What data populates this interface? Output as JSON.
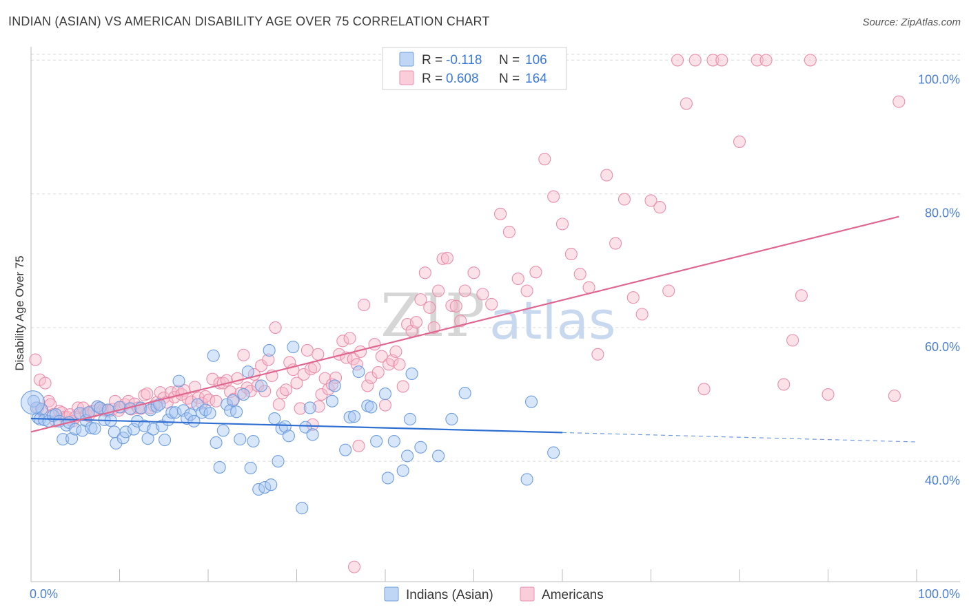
{
  "title": "INDIAN (ASIAN) VS AMERICAN DISABILITY AGE OVER 75 CORRELATION CHART",
  "source": "Source: ZipAtlas.com",
  "watermark": {
    "zip": "ZIP",
    "atlas": "atlas"
  },
  "colors": {
    "indian_fill": "#a9c8f2",
    "indian_stroke": "#6d9de0",
    "indian_line": "#2f6fd1",
    "american_fill": "#f7bccd",
    "american_stroke": "#ea8eab",
    "american_line": "#e06690",
    "grid": "#d9d9d9",
    "tick_label": "#4a7fd0"
  },
  "legend": {
    "rows": [
      {
        "r_label": "R = ",
        "r_value": "-0.118",
        "n_label": "N = ",
        "n_value": "106"
      },
      {
        "r_label": "R = ",
        "r_value": "0.608",
        "n_label": "N = ",
        "n_value": "164"
      }
    ]
  },
  "bottom_legend": [
    "Indians (Asian)",
    "Americans"
  ],
  "chart_data": {
    "type": "scatter",
    "xlabel": "",
    "ylabel": "Disability Age Over 75",
    "xlim": [
      0,
      100
    ],
    "ylim": [
      22,
      102
    ],
    "x_tick_labels": [
      "0.0%",
      "100.0%"
    ],
    "y_ticks": [
      40,
      60,
      80,
      100
    ],
    "y_tick_labels": [
      "40.0%",
      "60.0%",
      "80.0%",
      "100.0%"
    ],
    "grid": true,
    "legend_position": "top-center",
    "series": [
      {
        "name": "Indians (Asian)",
        "r": -0.118,
        "n": 106,
        "trend": {
          "x0": 0,
          "y0": 46.4,
          "x1": 60,
          "y1": 44.3,
          "dashed_to_x": 100,
          "dashed_y1": 42.9
        },
        "points": [
          [
            0.6,
            48.0
          ],
          [
            0.8,
            46.5
          ],
          [
            1.0,
            46.3
          ],
          [
            1.5,
            46.2
          ],
          [
            2.0,
            46.0
          ],
          [
            2.5,
            46.8
          ],
          [
            2.8,
            47.0
          ],
          [
            3.2,
            46.0
          ],
          [
            3.6,
            43.3
          ],
          [
            4.0,
            45.4
          ],
          [
            4.3,
            45.8
          ],
          [
            4.6,
            43.4
          ],
          [
            5.0,
            44.8
          ],
          [
            5.5,
            47.2
          ],
          [
            5.8,
            44.6
          ],
          [
            6.2,
            46.1
          ],
          [
            6.5,
            47.3
          ],
          [
            6.8,
            45.0
          ],
          [
            7.2,
            44.9
          ],
          [
            7.5,
            48.2
          ],
          [
            7.8,
            48.0
          ],
          [
            8.3,
            46.2
          ],
          [
            8.7,
            47.7
          ],
          [
            9.0,
            46.1
          ],
          [
            9.4,
            44.4
          ],
          [
            9.6,
            42.7
          ],
          [
            10.0,
            48.1
          ],
          [
            10.4,
            43.5
          ],
          [
            10.7,
            44.4
          ],
          [
            11.2,
            47.9
          ],
          [
            11.6,
            44.8
          ],
          [
            12.0,
            46.0
          ],
          [
            12.4,
            48.0
          ],
          [
            12.8,
            45.3
          ],
          [
            13.2,
            43.4
          ],
          [
            13.5,
            47.7
          ],
          [
            13.8,
            44.8
          ],
          [
            14.2,
            48.2
          ],
          [
            14.5,
            48.5
          ],
          [
            14.8,
            45.3
          ],
          [
            15.1,
            43.2
          ],
          [
            15.5,
            46.2
          ],
          [
            15.9,
            47.3
          ],
          [
            16.3,
            47.3
          ],
          [
            16.7,
            52.0
          ],
          [
            17.2,
            47.6
          ],
          [
            17.6,
            46.4
          ],
          [
            18.0,
            47.0
          ],
          [
            18.4,
            46.0
          ],
          [
            18.8,
            48.5
          ],
          [
            19.3,
            47.3
          ],
          [
            19.7,
            47.7
          ],
          [
            20.2,
            47.2
          ],
          [
            20.6,
            55.8
          ],
          [
            20.9,
            42.8
          ],
          [
            21.3,
            39.1
          ],
          [
            21.7,
            44.6
          ],
          [
            22.1,
            48.5
          ],
          [
            22.5,
            47.6
          ],
          [
            22.8,
            49.1
          ],
          [
            23.2,
            47.4
          ],
          [
            23.6,
            43.3
          ],
          [
            24.0,
            50.0
          ],
          [
            24.5,
            53.4
          ],
          [
            24.8,
            39.0
          ],
          [
            25.1,
            43.0
          ],
          [
            25.7,
            35.8
          ],
          [
            26.0,
            51.3
          ],
          [
            26.4,
            36.1
          ],
          [
            26.9,
            56.6
          ],
          [
            27.1,
            36.5
          ],
          [
            27.5,
            46.4
          ],
          [
            27.9,
            40.0
          ],
          [
            28.3,
            44.9
          ],
          [
            28.7,
            45.2
          ],
          [
            29.1,
            43.8
          ],
          [
            29.6,
            57.1
          ],
          [
            30.6,
            33.0
          ],
          [
            31.0,
            45.1
          ],
          [
            31.5,
            48.0
          ],
          [
            31.8,
            44.0
          ],
          [
            34.0,
            49.0
          ],
          [
            34.3,
            51.3
          ],
          [
            35.5,
            41.7
          ],
          [
            36.0,
            46.6
          ],
          [
            36.5,
            46.7
          ],
          [
            37.0,
            53.4
          ],
          [
            38.0,
            48.3
          ],
          [
            38.4,
            48.1
          ],
          [
            39.0,
            43.0
          ],
          [
            40.0,
            50.1
          ],
          [
            40.3,
            37.5
          ],
          [
            41.0,
            43.0
          ],
          [
            42.0,
            38.6
          ],
          [
            42.5,
            40.8
          ],
          [
            42.8,
            46.3
          ],
          [
            43.0,
            53.1
          ],
          [
            44.0,
            42.1
          ],
          [
            46.0,
            40.8
          ],
          [
            47.5,
            46.3
          ],
          [
            49.0,
            50.2
          ],
          [
            56.0,
            37.3
          ],
          [
            56.5,
            48.9
          ],
          [
            59.0,
            41.3
          ],
          [
            0.3,
            49.0
          ],
          [
            1.2,
            47.8
          ]
        ]
      },
      {
        "name": "Americans",
        "r": 0.608,
        "n": 164,
        "trend": {
          "x0": 0,
          "y0": 44.4,
          "x1": 98,
          "y1": 76.6
        },
        "points": [
          [
            0.5,
            55.2
          ],
          [
            0.8,
            48.0
          ],
          [
            1.0,
            52.2
          ],
          [
            1.3,
            47.5
          ],
          [
            1.6,
            51.7
          ],
          [
            2.0,
            49.0
          ],
          [
            2.2,
            48.5
          ],
          [
            2.5,
            47.0
          ],
          [
            2.8,
            46.0
          ],
          [
            3.2,
            47.5
          ],
          [
            3.5,
            47.3
          ],
          [
            3.8,
            46.6
          ],
          [
            4.1,
            46.6
          ],
          [
            4.4,
            47.0
          ],
          [
            4.7,
            46.0
          ],
          [
            5.0,
            46.6
          ],
          [
            5.3,
            48.0
          ],
          [
            5.6,
            47.0
          ],
          [
            5.9,
            48.0
          ],
          [
            6.2,
            47.0
          ],
          [
            6.5,
            46.8
          ],
          [
            6.8,
            47.5
          ],
          [
            7.1,
            47.5
          ],
          [
            7.5,
            48.2
          ],
          [
            7.8,
            48.0
          ],
          [
            8.1,
            47.7
          ],
          [
            8.4,
            47.6
          ],
          [
            8.8,
            47.5
          ],
          [
            9.2,
            47.8
          ],
          [
            9.5,
            49.0
          ],
          [
            9.9,
            47.6
          ],
          [
            10.2,
            48.1
          ],
          [
            10.6,
            48.5
          ],
          [
            11.0,
            49.0
          ],
          [
            11.3,
            47.8
          ],
          [
            11.7,
            48.6
          ],
          [
            12.1,
            48.0
          ],
          [
            12.4,
            47.9
          ],
          [
            12.8,
            49.9
          ],
          [
            13.1,
            50.1
          ],
          [
            13.5,
            48.0
          ],
          [
            13.9,
            48.3
          ],
          [
            14.2,
            48.8
          ],
          [
            14.6,
            50.3
          ],
          [
            15.0,
            49.5
          ],
          [
            15.4,
            48.8
          ],
          [
            15.8,
            50.3
          ],
          [
            16.2,
            49.6
          ],
          [
            16.6,
            50.5
          ],
          [
            17.0,
            50.0
          ],
          [
            17.3,
            50.6
          ],
          [
            17.7,
            49.4
          ],
          [
            18.1,
            48.9
          ],
          [
            18.5,
            51.1
          ],
          [
            18.9,
            49.5
          ],
          [
            19.3,
            48.7
          ],
          [
            19.7,
            49.7
          ],
          [
            20.1,
            49.2
          ],
          [
            20.5,
            52.3
          ],
          [
            20.9,
            49.0
          ],
          [
            21.3,
            51.7
          ],
          [
            21.7,
            51.7
          ],
          [
            22.1,
            52.1
          ],
          [
            22.5,
            50.4
          ],
          [
            22.9,
            49.3
          ],
          [
            23.3,
            52.4
          ],
          [
            23.7,
            50.2
          ],
          [
            24.0,
            55.9
          ],
          [
            24.4,
            51.0
          ],
          [
            24.8,
            50.5
          ],
          [
            25.2,
            53.0
          ],
          [
            25.6,
            51.3
          ],
          [
            26.0,
            54.3
          ],
          [
            26.4,
            50.5
          ],
          [
            26.8,
            55.2
          ],
          [
            27.2,
            52.8
          ],
          [
            27.6,
            60.0
          ],
          [
            28.0,
            48.5
          ],
          [
            28.4,
            50.2
          ],
          [
            28.8,
            50.7
          ],
          [
            29.2,
            54.8
          ],
          [
            29.6,
            53.7
          ],
          [
            30.0,
            51.7
          ],
          [
            30.4,
            47.9
          ],
          [
            30.8,
            53.0
          ],
          [
            31.2,
            56.6
          ],
          [
            31.6,
            53.8
          ],
          [
            32.0,
            54.1
          ],
          [
            32.4,
            56.0
          ],
          [
            32.8,
            50.0
          ],
          [
            33.2,
            52.4
          ],
          [
            33.6,
            50.8
          ],
          [
            34.0,
            51.5
          ],
          [
            34.4,
            52.5
          ],
          [
            34.8,
            56.0
          ],
          [
            35.2,
            58.0
          ],
          [
            35.6,
            55.5
          ],
          [
            36.0,
            58.4
          ],
          [
            36.4,
            55.3
          ],
          [
            36.8,
            54.5
          ],
          [
            37.2,
            56.4
          ],
          [
            37.6,
            63.4
          ],
          [
            38.0,
            51.3
          ],
          [
            38.4,
            52.5
          ],
          [
            38.8,
            57.5
          ],
          [
            39.2,
            53.3
          ],
          [
            39.6,
            55.7
          ],
          [
            40.0,
            48.4
          ],
          [
            40.4,
            54.5
          ],
          [
            40.8,
            55.1
          ],
          [
            41.2,
            56.4
          ],
          [
            41.6,
            54.5
          ],
          [
            42.0,
            51.2
          ],
          [
            42.5,
            60.5
          ],
          [
            43.0,
            59.5
          ],
          [
            43.5,
            60.8
          ],
          [
            44.0,
            64.2
          ],
          [
            44.5,
            68.2
          ],
          [
            45.0,
            63.0
          ],
          [
            45.5,
            60.0
          ],
          [
            46.0,
            65.5
          ],
          [
            46.5,
            70.3
          ],
          [
            47.0,
            70.4
          ],
          [
            47.5,
            63.3
          ],
          [
            48.0,
            63.2
          ],
          [
            48.5,
            61.0
          ],
          [
            49.0,
            65.5
          ],
          [
            50.0,
            68.2
          ],
          [
            51.0,
            65.0
          ],
          [
            52.0,
            63.5
          ],
          [
            53.0,
            77.0
          ],
          [
            54.0,
            74.3
          ],
          [
            55.0,
            67.3
          ],
          [
            56.0,
            65.5
          ],
          [
            57.0,
            68.3
          ],
          [
            58.0,
            85.2
          ],
          [
            59.0,
            79.6
          ],
          [
            60.0,
            75.5
          ],
          [
            61.0,
            71.0
          ],
          [
            62.0,
            68.0
          ],
          [
            63.0,
            66.0
          ],
          [
            64.0,
            56.0
          ],
          [
            65.0,
            82.8
          ],
          [
            66.0,
            72.6
          ],
          [
            67.0,
            79.2
          ],
          [
            68.0,
            64.5
          ],
          [
            69.0,
            62.0
          ],
          [
            70.0,
            79.0
          ],
          [
            71.0,
            78.0
          ],
          [
            72.0,
            65.5
          ],
          [
            73.0,
            100.0
          ],
          [
            74.0,
            93.5
          ],
          [
            75.0,
            100.0
          ],
          [
            76.0,
            50.8
          ],
          [
            77.0,
            100.0
          ],
          [
            78.0,
            100.0
          ],
          [
            80.0,
            87.8
          ],
          [
            82.0,
            100.0
          ],
          [
            83.0,
            100.0
          ],
          [
            85.0,
            51.5
          ],
          [
            86.0,
            58.1
          ],
          [
            87.0,
            64.8
          ],
          [
            88.0,
            100.0
          ],
          [
            90.0,
            50.0
          ],
          [
            97.5,
            49.8
          ],
          [
            98.0,
            93.8
          ],
          [
            36.5,
            24.2
          ],
          [
            32.5,
            48.2
          ],
          [
            31.8,
            45.5
          ],
          [
            37.0,
            42.3
          ]
        ]
      }
    ]
  }
}
